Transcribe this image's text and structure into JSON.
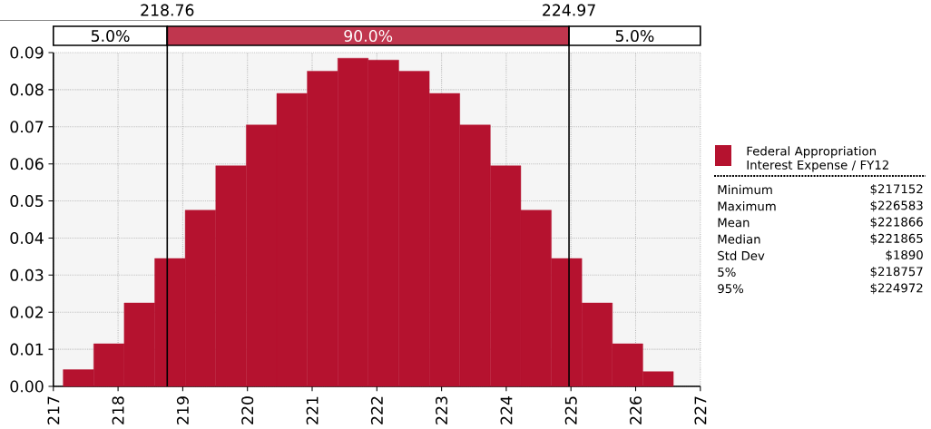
{
  "chart_data": {
    "type": "histogram",
    "bins": [
      217.152,
      217.624,
      218.095,
      218.567,
      219.038,
      219.51,
      219.981,
      220.453,
      220.924,
      221.396,
      221.867,
      222.339,
      222.811,
      223.282,
      223.754,
      224.225,
      224.697,
      225.168,
      225.64,
      226.111,
      226.583
    ],
    "series": [
      {
        "name": "Federal Appropriation Interest Expense / FY12",
        "color": "#b5122f",
        "values": [
          0.0045,
          0.0115,
          0.0225,
          0.0345,
          0.0475,
          0.0595,
          0.0705,
          0.079,
          0.085,
          0.0885,
          0.088,
          0.085,
          0.079,
          0.0705,
          0.0595,
          0.0475,
          0.0345,
          0.0225,
          0.0115,
          0.004
        ]
      }
    ],
    "xlim": [
      217,
      227
    ],
    "ylim": [
      0,
      0.09
    ],
    "xticks": [
      217,
      218,
      219,
      220,
      221,
      222,
      223,
      224,
      225,
      226,
      227
    ],
    "yticks": [
      {
        "value": 0,
        "label": "0.00"
      },
      {
        "value": 0.01,
        "label": "0.01"
      },
      {
        "value": 0.02,
        "label": "0.02"
      },
      {
        "value": 0.03,
        "label": "0.03"
      },
      {
        "value": 0.04,
        "label": "0.04"
      },
      {
        "value": 0.05,
        "label": "0.05"
      },
      {
        "value": 0.06,
        "label": "0.06"
      },
      {
        "value": 0.07,
        "label": "0.07"
      },
      {
        "value": 0.08,
        "label": "0.08"
      },
      {
        "value": 0.09,
        "label": "0.09"
      }
    ],
    "ref_lines": [
      {
        "axis": "x",
        "value": 218.76,
        "label": "218.76"
      },
      {
        "axis": "x",
        "value": 224.97,
        "label": "224.97"
      }
    ],
    "annotations": [
      "5.0%",
      "90.0%",
      "5.0%",
      "Minimum",
      "$217152",
      "Maximum",
      "$226583",
      "Mean",
      "$221866",
      "Median",
      "$221865",
      "Std Dev",
      "$1890",
      "5%",
      "$218757",
      "95%",
      "$224972"
    ],
    "grid": true,
    "legend": "right"
  }
}
